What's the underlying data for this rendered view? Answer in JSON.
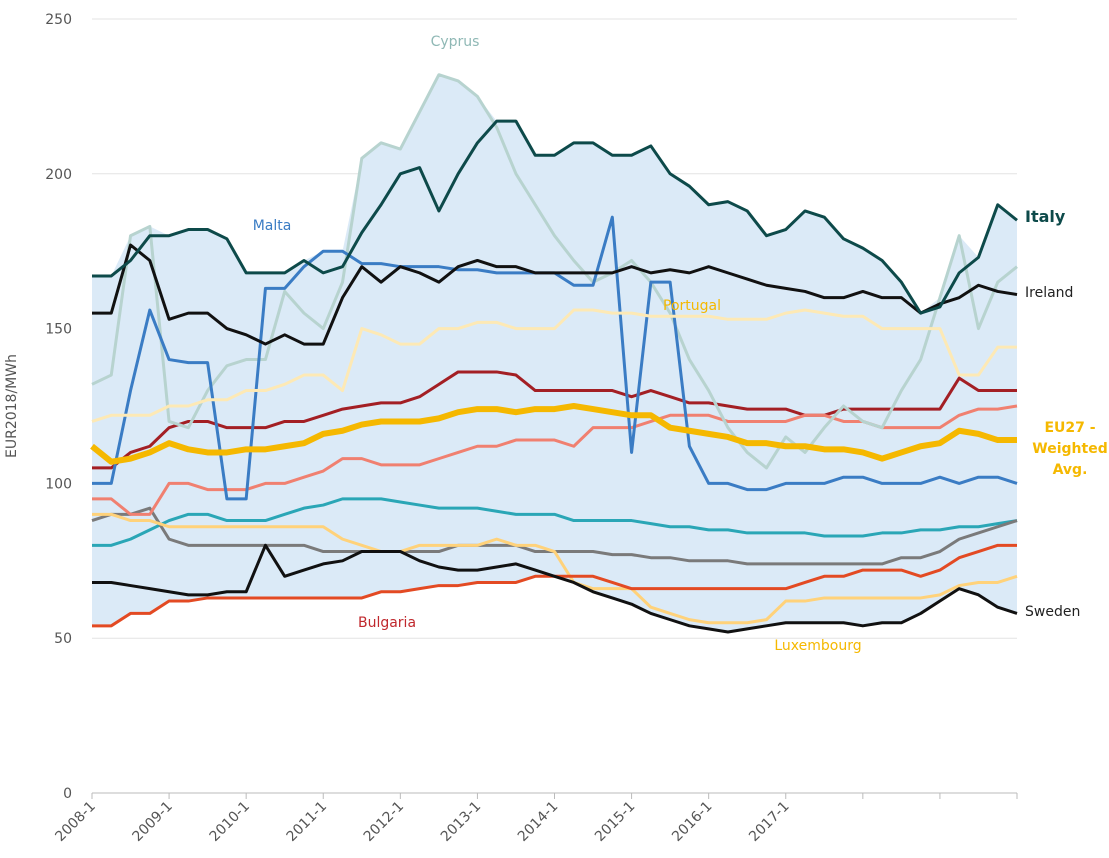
{
  "chart_data": {
    "type": "line",
    "ylabel": "EUR2018/MWh",
    "ylim": [
      0,
      250
    ],
    "yticks": [
      0,
      50,
      100,
      150,
      200,
      250
    ],
    "grid": true,
    "band_color": "#dbeaf7",
    "categories": [
      "2008-1",
      null,
      null,
      null,
      "2009-1",
      null,
      null,
      null,
      "2010-1",
      null,
      null,
      null,
      "2011-1",
      null,
      null,
      null,
      "2012-1",
      null,
      null,
      null,
      "2013-1",
      null,
      null,
      null,
      "2014-1",
      null,
      null,
      null,
      "2015-1",
      null,
      null,
      null,
      "2016-1",
      null,
      null,
      null,
      "2017-1",
      null,
      null,
      null,
      null,
      null,
      null,
      null,
      null,
      null,
      null,
      null,
      null
    ],
    "series": [
      {
        "color": "#a31f24",
        "width": 3,
        "values": [
          105,
          105,
          110,
          112,
          118,
          120,
          120,
          118,
          118,
          118,
          120,
          120,
          122,
          124,
          125,
          126,
          126,
          128,
          132,
          136,
          136,
          136,
          135,
          130,
          130,
          130,
          130,
          130,
          128,
          130,
          128,
          126,
          126,
          125,
          124,
          124,
          124,
          122,
          122,
          124,
          124,
          124,
          124,
          124,
          124,
          134,
          130,
          130,
          130
        ]
      },
      {
        "color": "#2aa6b6",
        "width": 3,
        "values": [
          80,
          80,
          82,
          85,
          88,
          90,
          90,
          88,
          88,
          88,
          90,
          92,
          93,
          95,
          95,
          95,
          94,
          93,
          92,
          92,
          92,
          91,
          90,
          90,
          90,
          88,
          88,
          88,
          88,
          87,
          86,
          86,
          85,
          85,
          84,
          84,
          84,
          84,
          83,
          83,
          83,
          84,
          84,
          85,
          85,
          86,
          86,
          87,
          88
        ]
      },
      {
        "color": "#7a7a7a",
        "width": 3,
        "values": [
          88,
          90,
          90,
          92,
          82,
          80,
          80,
          80,
          80,
          80,
          80,
          80,
          78,
          78,
          78,
          78,
          78,
          78,
          78,
          80,
          80,
          80,
          80,
          78,
          78,
          78,
          78,
          77,
          77,
          76,
          76,
          75,
          75,
          75,
          74,
          74,
          74,
          74,
          74,
          74,
          74,
          74,
          76,
          76,
          78,
          82,
          84,
          86,
          88
        ]
      },
      {
        "color": "#f08070",
        "width": 3,
        "values": [
          95,
          95,
          90,
          90,
          100,
          100,
          98,
          98,
          98,
          100,
          100,
          102,
          104,
          108,
          108,
          106,
          106,
          106,
          108,
          110,
          112,
          112,
          114,
          114,
          114,
          112,
          118,
          118,
          118,
          120,
          122,
          122,
          122,
          120,
          120,
          120,
          120,
          122,
          122,
          120,
          120,
          118,
          118,
          118,
          118,
          122,
          124,
          124,
          125
        ]
      },
      {
        "name": "Cyprus",
        "color": "#b7d3cf",
        "label_color": "#8fb8b5",
        "width": 3,
        "values": [
          132,
          135,
          180,
          183,
          120,
          118,
          130,
          138,
          140,
          140,
          162,
          155,
          150,
          165,
          205,
          210,
          208,
          220,
          232,
          230,
          225,
          215,
          200,
          190,
          180,
          172,
          165,
          168,
          172,
          165,
          155,
          140,
          130,
          118,
          110,
          105,
          115,
          110,
          118,
          125,
          120,
          118,
          130,
          140,
          160,
          180,
          150,
          165,
          170
        ]
      },
      {
        "name": "Malta",
        "color": "#3a7cc4",
        "label_color": "#3a7cc4",
        "width": 3,
        "values": [
          100,
          100,
          130,
          156,
          140,
          139,
          139,
          95,
          95,
          163,
          163,
          170,
          175,
          175,
          171,
          171,
          170,
          170,
          170,
          169,
          169,
          168,
          168,
          168,
          168,
          164,
          164,
          186,
          110,
          165,
          165,
          112,
          100,
          100,
          98,
          98,
          100,
          100,
          100,
          102,
          102,
          100,
          100,
          100,
          102,
          100,
          102,
          102,
          100
        ]
      },
      {
        "name": "Portugal",
        "color": "#fde9b5",
        "label_color": "#f5b800",
        "width": 3,
        "values": [
          120,
          122,
          122,
          122,
          125,
          125,
          127,
          127,
          130,
          130,
          132,
          135,
          135,
          130,
          150,
          148,
          145,
          145,
          150,
          150,
          152,
          152,
          150,
          150,
          150,
          156,
          156,
          155,
          155,
          154,
          154,
          154,
          154,
          153,
          153,
          153,
          155,
          156,
          155,
          154,
          154,
          150,
          150,
          150,
          150,
          135,
          135,
          144,
          144
        ]
      },
      {
        "name": "Luxembourg",
        "color": "#ffd27a",
        "label_color": "#f5b800",
        "width": 3,
        "values": [
          90,
          90,
          88,
          88,
          86,
          86,
          86,
          86,
          86,
          86,
          86,
          86,
          86,
          82,
          80,
          78,
          78,
          80,
          80,
          80,
          80,
          82,
          80,
          80,
          78,
          68,
          66,
          66,
          66,
          60,
          58,
          56,
          55,
          55,
          55,
          56,
          62,
          62,
          63,
          63,
          63,
          63,
          63,
          63,
          64,
          67,
          68,
          68,
          70
        ]
      },
      {
        "name": "Bulgaria",
        "color": "#e34a23",
        "label_color": "#c0282d",
        "width": 3,
        "values": [
          54,
          54,
          58,
          58,
          62,
          62,
          63,
          63,
          63,
          63,
          63,
          63,
          63,
          63,
          63,
          65,
          65,
          66,
          67,
          67,
          68,
          68,
          68,
          70,
          70,
          70,
          70,
          68,
          66,
          66,
          66,
          66,
          66,
          66,
          66,
          66,
          66,
          68,
          70,
          70,
          72,
          72,
          72,
          70,
          72,
          76,
          78,
          80,
          80
        ]
      },
      {
        "name": "Sweden",
        "color": "#111111",
        "label_color": "#222222",
        "width": 3,
        "values": [
          68,
          68,
          67,
          66,
          65,
          64,
          64,
          65,
          65,
          80,
          70,
          72,
          74,
          75,
          78,
          78,
          78,
          75,
          73,
          72,
          72,
          73,
          74,
          72,
          70,
          68,
          65,
          63,
          61,
          58,
          56,
          54,
          53,
          52,
          53,
          54,
          55,
          55,
          55,
          55,
          54,
          55,
          55,
          58,
          62,
          66,
          64,
          60,
          58
        ]
      },
      {
        "name": "Ireland",
        "color": "#111111",
        "label_color": "#222222",
        "width": 3,
        "values": [
          155,
          155,
          177,
          172,
          153,
          155,
          155,
          150,
          148,
          145,
          148,
          145,
          145,
          160,
          170,
          165,
          170,
          168,
          165,
          170,
          172,
          170,
          170,
          168,
          168,
          168,
          168,
          168,
          170,
          168,
          169,
          168,
          170,
          168,
          166,
          164,
          163,
          162,
          160,
          160,
          162,
          160,
          160,
          155,
          158,
          160,
          164,
          162,
          161
        ]
      },
      {
        "name": "Italy",
        "color": "#0d4a4a",
        "label_color": "#0d4a4a",
        "width": 3,
        "values": [
          167,
          167,
          172,
          180,
          180,
          182,
          182,
          179,
          168,
          168,
          168,
          172,
          168,
          170,
          181,
          190,
          200,
          202,
          188,
          200,
          210,
          217,
          217,
          206,
          206,
          210,
          210,
          206,
          206,
          209,
          200,
          196,
          190,
          191,
          188,
          180,
          182,
          188,
          186,
          179,
          176,
          172,
          165,
          155,
          157,
          168,
          173,
          190,
          185
        ]
      },
      {
        "name": "EU27 - Weighted Avg.",
        "color": "#f5b800",
        "label_color": "#f5b800",
        "width": 6,
        "values": [
          112,
          107,
          108,
          110,
          113,
          111,
          110,
          110,
          111,
          111,
          112,
          113,
          116,
          117,
          119,
          120,
          120,
          120,
          121,
          123,
          124,
          124,
          123,
          124,
          124,
          125,
          124,
          123,
          122,
          122,
          118,
          117,
          116,
          115,
          113,
          113,
          112,
          112,
          111,
          111,
          110,
          108,
          110,
          112,
          113,
          117,
          116,
          114,
          114
        ]
      }
    ]
  }
}
